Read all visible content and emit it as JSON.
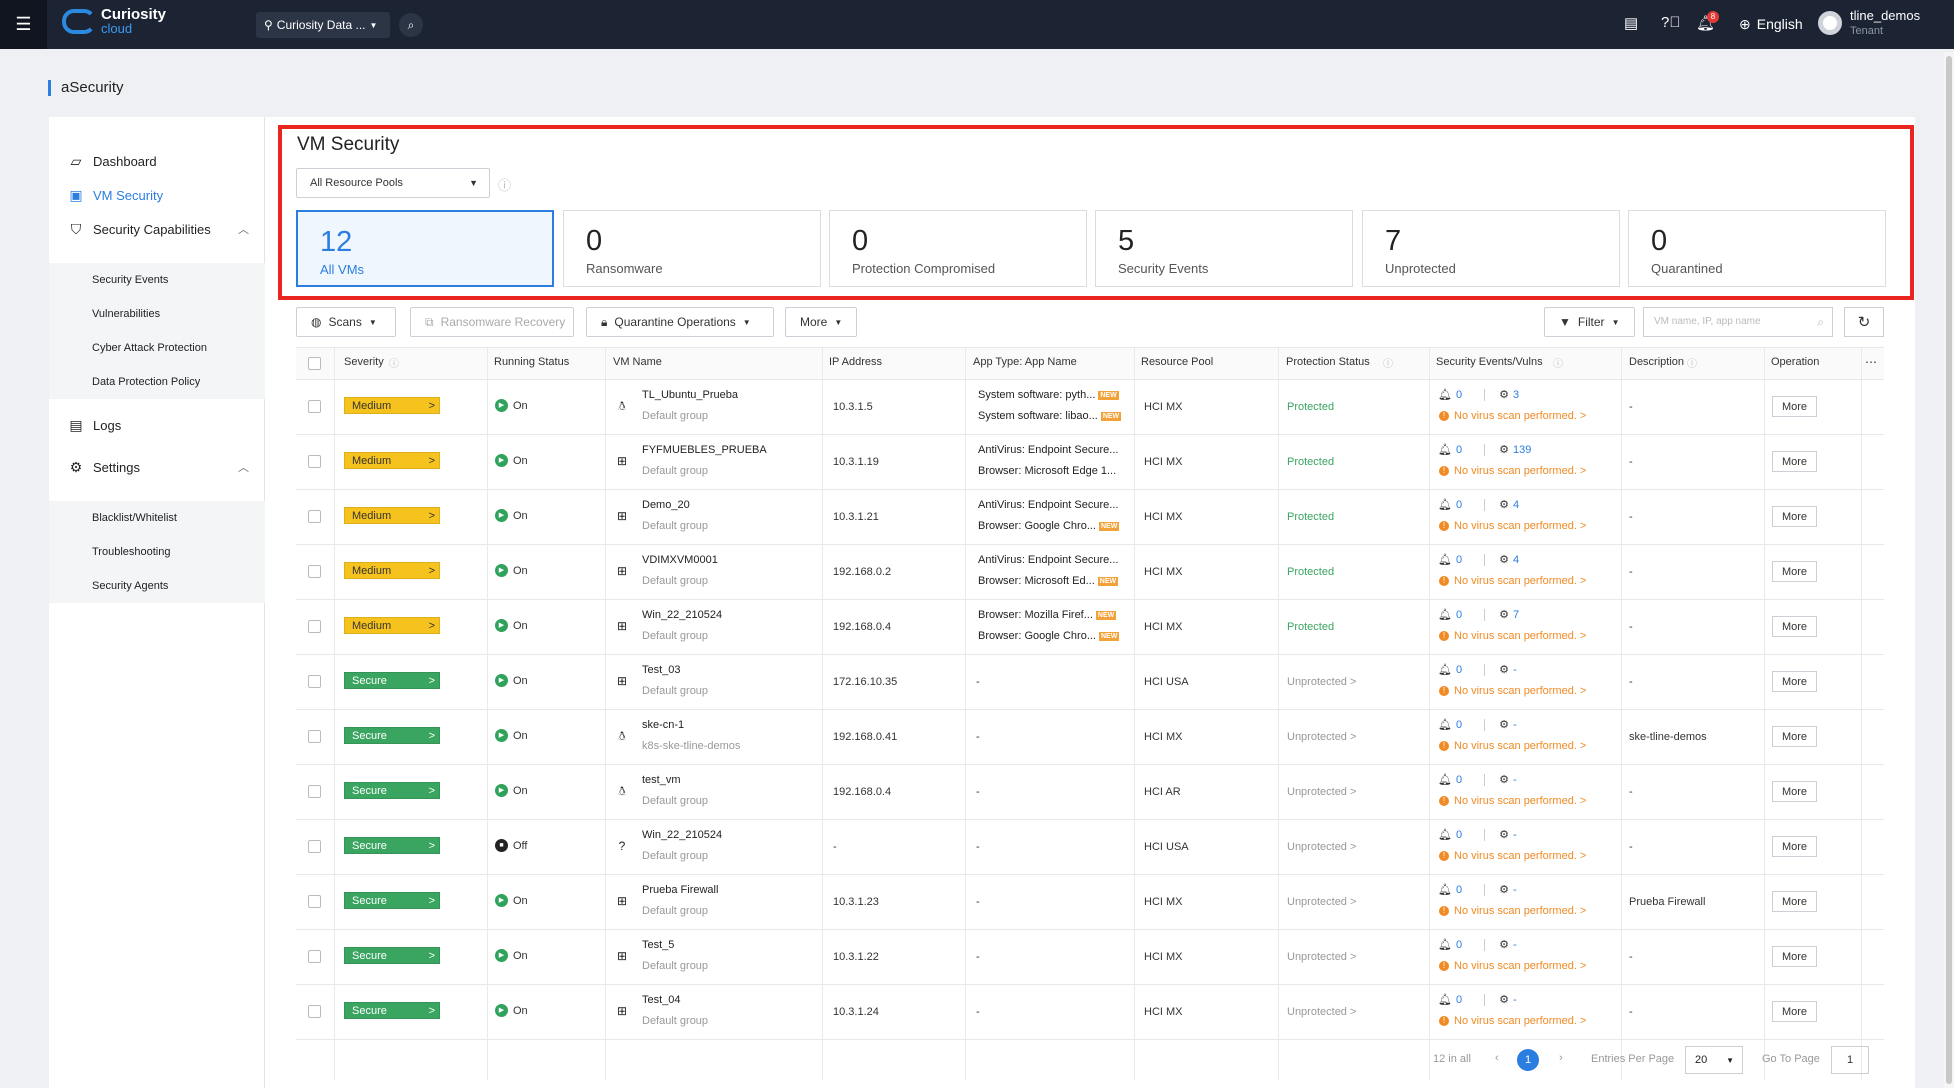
{
  "topbar": {
    "logo_line1": "Curiosity",
    "logo_line2": "cloud",
    "datacenter": "Curiosity Data ...",
    "language": "English",
    "username": "tline_demos",
    "role": "Tenant",
    "notification_count": "8"
  },
  "breadcrumb": "aSecurity",
  "sidebar": {
    "dashboard": "Dashboard",
    "vm_security": "VM Security",
    "security_capabilities": "Security Capabilities",
    "security_events": "Security Events",
    "vulnerabilities": "Vulnerabilities",
    "cyber_attack": "Cyber Attack Protection",
    "data_protection": "Data Protection Policy",
    "logs": "Logs",
    "settings": "Settings",
    "blacklist": "Blacklist/Whitelist",
    "troubleshooting": "Troubleshooting",
    "security_agents": "Security Agents"
  },
  "main": {
    "title": "VM Security",
    "pool_select": "All Resource Pools",
    "cards": [
      {
        "num": "12",
        "label": "All VMs"
      },
      {
        "num": "0",
        "label": "Ransomware"
      },
      {
        "num": "0",
        "label": "Protection Compromised"
      },
      {
        "num": "5",
        "label": "Security Events"
      },
      {
        "num": "7",
        "label": "Unprotected"
      },
      {
        "num": "0",
        "label": "Quarantined"
      }
    ],
    "toolbar": {
      "scans": "Scans",
      "ransomware_recovery": "Ransomware Recovery",
      "quarantine": "Quarantine Operations",
      "more": "More",
      "filter": "Filter",
      "search_placeholder": "VM name, IP, app name"
    },
    "columns": {
      "severity": "Severity",
      "running": "Running Status",
      "vm_name": "VM Name",
      "ip": "IP Address",
      "app": "App Type: App Name",
      "pool": "Resource Pool",
      "protection": "Protection Status",
      "events": "Security Events/Vulns",
      "description": "Description",
      "operation": "Operation"
    },
    "rows": [
      {
        "severity": "Medium",
        "running": "On",
        "os": "linux",
        "name": "TL_Ubuntu_Prueba",
        "group": "Default group",
        "ip": "10.3.1.5",
        "app1": "System software: pyth...",
        "app1_new": "NEW",
        "app2": "System software: libao...",
        "app2_new": "NEW",
        "pool": "HCI MX",
        "protection": "Protected",
        "events": "0",
        "vulns": "3",
        "scan": "No virus scan performed. >",
        "description": "-",
        "op": "More"
      },
      {
        "severity": "Medium",
        "running": "On",
        "os": "windows",
        "name": "FYFMUEBLES_PRUEBA",
        "group": "Default group",
        "ip": "10.3.1.19",
        "app1": "AntiVirus: Endpoint Secure...",
        "app1_new": "",
        "app2": "Browser: Microsoft Edge 1...",
        "app2_new": "",
        "pool": "HCI MX",
        "protection": "Protected",
        "events": "0",
        "vulns": "139",
        "scan": "No virus scan performed. >",
        "description": "-",
        "op": "More"
      },
      {
        "severity": "Medium",
        "running": "On",
        "os": "windows",
        "name": "Demo_20",
        "group": "Default group",
        "ip": "10.3.1.21",
        "app1": "AntiVirus: Endpoint Secure...",
        "app1_new": "",
        "app2": "Browser: Google Chro...",
        "app2_new": "NEW",
        "pool": "HCI MX",
        "protection": "Protected",
        "events": "0",
        "vulns": "4",
        "scan": "No virus scan performed. >",
        "description": "-",
        "op": "More"
      },
      {
        "severity": "Medium",
        "running": "On",
        "os": "windows",
        "name": "VDIMXVM0001",
        "group": "Default group",
        "ip": "192.168.0.2",
        "app1": "AntiVirus: Endpoint Secure...",
        "app1_new": "",
        "app2": "Browser: Microsoft Ed...",
        "app2_new": "NEW",
        "pool": "HCI MX",
        "protection": "Protected",
        "events": "0",
        "vulns": "4",
        "scan": "No virus scan performed. >",
        "description": "-",
        "op": "More"
      },
      {
        "severity": "Medium",
        "running": "On",
        "os": "windows",
        "name": "Win_22_210524",
        "group": "Default group",
        "ip": "192.168.0.4",
        "app1": "Browser: Mozilla Firef...",
        "app1_new": "NEW",
        "app2": "Browser: Google Chro...",
        "app2_new": "NEW",
        "pool": "HCI MX",
        "protection": "Protected",
        "events": "0",
        "vulns": "7",
        "scan": "No virus scan performed. >",
        "description": "-",
        "op": "More"
      },
      {
        "severity": "Secure",
        "running": "On",
        "os": "windows",
        "name": "Test_03",
        "group": "Default group",
        "ip": "172.16.10.35",
        "app1": "-",
        "app1_new": "",
        "app2": "",
        "app2_new": "",
        "pool": "HCI USA",
        "protection": "Unprotected >",
        "events": "0",
        "vulns": "-",
        "scan": "No virus scan performed. >",
        "description": "-",
        "op": "More"
      },
      {
        "severity": "Secure",
        "running": "On",
        "os": "linux",
        "name": "ske-cn-1",
        "group": "k8s-ske-tline-demos",
        "ip": "192.168.0.41",
        "app1": "-",
        "app1_new": "",
        "app2": "",
        "app2_new": "",
        "pool": "HCI MX",
        "protection": "Unprotected >",
        "events": "0",
        "vulns": "-",
        "scan": "No virus scan performed. >",
        "description": "ske-tline-demos",
        "op": "More"
      },
      {
        "severity": "Secure",
        "running": "On",
        "os": "linux",
        "name": "test_vm",
        "group": "Default group",
        "ip": "192.168.0.4",
        "app1": "-",
        "app1_new": "",
        "app2": "",
        "app2_new": "",
        "pool": "HCI AR",
        "protection": "Unprotected >",
        "events": "0",
        "vulns": "-",
        "scan": "No virus scan performed. >",
        "description": "-",
        "op": "More"
      },
      {
        "severity": "Secure",
        "running": "Off",
        "os": "unknown",
        "name": "Win_22_210524",
        "group": "Default group",
        "ip": "-",
        "app1": "-",
        "app1_new": "",
        "app2": "",
        "app2_new": "",
        "pool": "HCI USA",
        "protection": "Unprotected >",
        "events": "0",
        "vulns": "-",
        "scan": "No virus scan performed. >",
        "description": "-",
        "op": "More"
      },
      {
        "severity": "Secure",
        "running": "On",
        "os": "windows",
        "name": "Prueba Firewall",
        "group": "Default group",
        "ip": "10.3.1.23",
        "app1": "-",
        "app1_new": "",
        "app2": "",
        "app2_new": "",
        "pool": "HCI MX",
        "protection": "Unprotected >",
        "events": "0",
        "vulns": "-",
        "scan": "No virus scan performed. >",
        "description": "Prueba Firewall",
        "op": "More"
      },
      {
        "severity": "Secure",
        "running": "On",
        "os": "windows",
        "name": "Test_5",
        "group": "Default group",
        "ip": "10.3.1.22",
        "app1": "-",
        "app1_new": "",
        "app2": "",
        "app2_new": "",
        "pool": "HCI MX",
        "protection": "Unprotected >",
        "events": "0",
        "vulns": "-",
        "scan": "No virus scan performed. >",
        "description": "-",
        "op": "More"
      },
      {
        "severity": "Secure",
        "running": "On",
        "os": "windows",
        "name": "Test_04",
        "group": "Default group",
        "ip": "10.3.1.24",
        "app1": "-",
        "app1_new": "",
        "app2": "",
        "app2_new": "",
        "pool": "HCI MX",
        "protection": "Unprotected >",
        "events": "0",
        "vulns": "-",
        "scan": "No virus scan performed. >",
        "description": "-",
        "op": "More"
      }
    ],
    "pagination": {
      "total": "12 in all",
      "current_page": "1",
      "entries_label": "Entries Per Page",
      "per_page": "20",
      "goto_label": "Go To Page",
      "goto_value": "1"
    }
  }
}
